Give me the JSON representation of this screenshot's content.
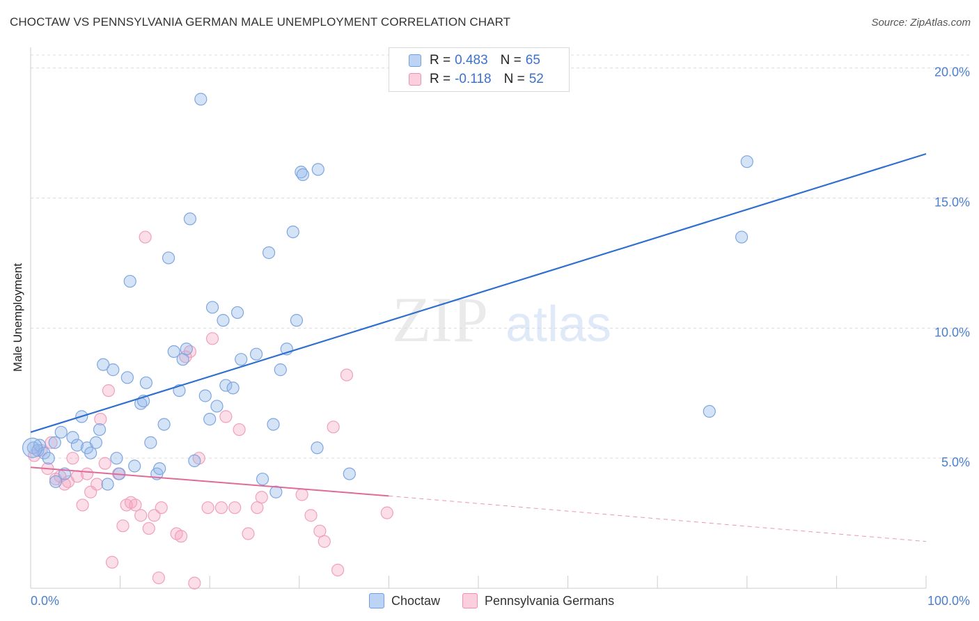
{
  "title": "CHOCTAW VS PENNSYLVANIA GERMAN MALE UNEMPLOYMENT CORRELATION CHART",
  "source": "Source: ZipAtlas.com",
  "watermark": {
    "zip": "ZIP",
    "atlas": "atlas"
  },
  "legend_top": [
    {
      "r_label": "R =",
      "r_value": "0.483",
      "n_label": "N =",
      "n_value": "65"
    },
    {
      "r_label": "R =",
      "r_value": "-0.118",
      "n_label": "N =",
      "n_value": "52"
    }
  ],
  "legend_bottom": [
    "Choctaw",
    "Pennsylvania Germans"
  ],
  "chart_data": {
    "type": "scatter",
    "title": "CHOCTAW VS PENNSYLVANIA GERMAN MALE UNEMPLOYMENT CORRELATION CHART",
    "xlabel": "",
    "ylabel": "Male Unemployment",
    "xlim": [
      0,
      100
    ],
    "ylim": [
      0,
      20.5
    ],
    "x_tick_labels": [
      "0.0%",
      "100.0%"
    ],
    "y_ticks": [
      5,
      10,
      15,
      20
    ],
    "y_tick_labels": [
      "5.0%",
      "10.0%",
      "15.0%",
      "20.0%"
    ],
    "grid": true,
    "colors": {
      "Choctaw": "#6f9fe0",
      "Pennsylvania Germans": "#f08fb0",
      "choctaw_line": "#2f6fd0",
      "pg_line": "#e06a98"
    },
    "series": [
      {
        "name": "Choctaw",
        "r": 0.483,
        "n": 65,
        "trend": {
          "x0": 0,
          "y0": 6.0,
          "x1": 100,
          "y1": 16.7
        },
        "points": [
          [
            0.3,
            5.4
          ],
          [
            0.8,
            5.3
          ],
          [
            1.0,
            5.5
          ],
          [
            1.5,
            5.2
          ],
          [
            2.0,
            5.0
          ],
          [
            2.7,
            5.6
          ],
          [
            2.8,
            4.1
          ],
          [
            3.4,
            6.0
          ],
          [
            3.8,
            4.4
          ],
          [
            4.7,
            5.8
          ],
          [
            5.2,
            5.5
          ],
          [
            5.7,
            6.6
          ],
          [
            6.3,
            5.4
          ],
          [
            6.7,
            5.2
          ],
          [
            7.3,
            5.6
          ],
          [
            7.7,
            6.1
          ],
          [
            8.1,
            8.6
          ],
          [
            8.6,
            4.0
          ],
          [
            9.2,
            8.4
          ],
          [
            9.6,
            5.0
          ],
          [
            9.9,
            4.4
          ],
          [
            10.8,
            8.1
          ],
          [
            11.1,
            11.8
          ],
          [
            11.6,
            4.7
          ],
          [
            12.3,
            7.1
          ],
          [
            12.6,
            7.2
          ],
          [
            12.9,
            7.9
          ],
          [
            13.4,
            5.6
          ],
          [
            14.1,
            4.4
          ],
          [
            14.4,
            4.6
          ],
          [
            14.9,
            6.3
          ],
          [
            15.4,
            12.7
          ],
          [
            16.0,
            9.1
          ],
          [
            16.6,
            7.6
          ],
          [
            17.0,
            8.8
          ],
          [
            17.4,
            9.2
          ],
          [
            17.8,
            14.2
          ],
          [
            18.3,
            4.9
          ],
          [
            19.0,
            18.8
          ],
          [
            19.5,
            7.4
          ],
          [
            20.0,
            6.5
          ],
          [
            20.3,
            10.8
          ],
          [
            20.8,
            7.0
          ],
          [
            21.5,
            10.3
          ],
          [
            21.8,
            7.8
          ],
          [
            22.6,
            7.7
          ],
          [
            23.1,
            10.6
          ],
          [
            23.5,
            8.8
          ],
          [
            25.2,
            9.0
          ],
          [
            25.9,
            4.2
          ],
          [
            26.6,
            12.9
          ],
          [
            27.1,
            6.3
          ],
          [
            27.4,
            3.7
          ],
          [
            27.9,
            8.4
          ],
          [
            28.6,
            9.2
          ],
          [
            29.3,
            13.7
          ],
          [
            29.7,
            10.3
          ],
          [
            30.2,
            16.0
          ],
          [
            30.4,
            15.9
          ],
          [
            32.1,
            16.1
          ],
          [
            32.0,
            5.4
          ],
          [
            35.6,
            4.4
          ],
          [
            75.8,
            6.8
          ],
          [
            79.4,
            13.5
          ],
          [
            80.0,
            16.4
          ]
        ]
      },
      {
        "name": "Pennsylvania Germans",
        "r": -0.118,
        "n": 52,
        "trend": {
          "x0": 0,
          "y0": 4.65,
          "x1": 40,
          "y1": 3.55,
          "x_dash_end": 100,
          "y_dash_end": 1.8
        },
        "points": [
          [
            0.4,
            5.1
          ],
          [
            1.2,
            5.3
          ],
          [
            1.9,
            4.6
          ],
          [
            2.3,
            5.6
          ],
          [
            2.8,
            4.2
          ],
          [
            3.3,
            4.3
          ],
          [
            3.8,
            4.0
          ],
          [
            4.2,
            4.1
          ],
          [
            4.7,
            5.0
          ],
          [
            5.2,
            4.3
          ],
          [
            5.8,
            3.2
          ],
          [
            6.3,
            4.4
          ],
          [
            6.7,
            3.7
          ],
          [
            7.4,
            4.0
          ],
          [
            7.8,
            6.5
          ],
          [
            8.3,
            4.8
          ],
          [
            8.7,
            7.6
          ],
          [
            9.1,
            1.0
          ],
          [
            9.8,
            4.4
          ],
          [
            10.3,
            2.4
          ],
          [
            10.7,
            3.2
          ],
          [
            11.2,
            3.3
          ],
          [
            11.7,
            3.2
          ],
          [
            12.3,
            2.8
          ],
          [
            12.8,
            13.5
          ],
          [
            13.2,
            2.3
          ],
          [
            13.8,
            2.8
          ],
          [
            14.3,
            0.4
          ],
          [
            14.6,
            3.1
          ],
          [
            16.3,
            2.1
          ],
          [
            16.8,
            2.0
          ],
          [
            17.3,
            8.9
          ],
          [
            17.8,
            9.1
          ],
          [
            18.3,
            0.2
          ],
          [
            18.8,
            5.0
          ],
          [
            19.8,
            3.1
          ],
          [
            20.3,
            9.6
          ],
          [
            21.3,
            3.1
          ],
          [
            21.8,
            6.6
          ],
          [
            22.8,
            3.1
          ],
          [
            23.3,
            6.1
          ],
          [
            24.3,
            2.1
          ],
          [
            25.3,
            3.1
          ],
          [
            25.8,
            3.5
          ],
          [
            30.3,
            3.6
          ],
          [
            31.3,
            2.8
          ],
          [
            32.3,
            2.2
          ],
          [
            32.8,
            1.8
          ],
          [
            33.8,
            6.2
          ],
          [
            34.3,
            0.7
          ],
          [
            35.3,
            8.2
          ],
          [
            39.8,
            2.9
          ]
        ]
      }
    ]
  }
}
